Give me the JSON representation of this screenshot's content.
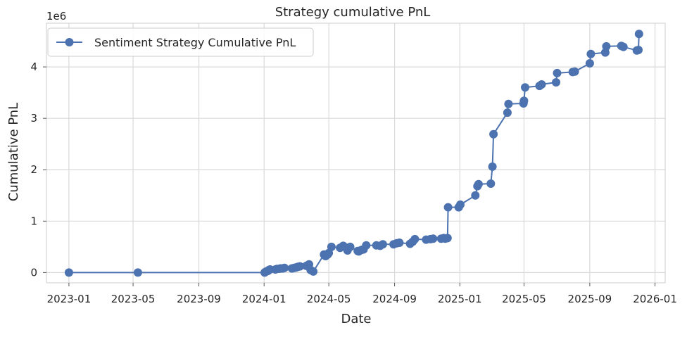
{
  "chart_data": {
    "type": "line",
    "title": "Strategy cumulative PnL",
    "xlabel": "Date",
    "ylabel": "Cumulative PnL",
    "y_offset_label": "1e6",
    "y_scale_factor": 1000000,
    "xlim": [
      "2022-11-20",
      "2026-01-20"
    ],
    "ylim": [
      -200000,
      4850000
    ],
    "x_ticks": [
      "2023-01",
      "2023-05",
      "2023-09",
      "2024-01",
      "2024-05",
      "2024-09",
      "2025-01",
      "2025-05",
      "2025-09",
      "2026-01"
    ],
    "y_ticks": [
      0,
      1000000,
      2000000,
      3000000,
      4000000
    ],
    "y_tick_labels": [
      "0",
      "1",
      "2",
      "3",
      "4"
    ],
    "grid": true,
    "legend_position": "top-left",
    "colors": {
      "series": "#4c72b0",
      "grid": "#d9d9d9",
      "axes_edge": "#cccccc"
    },
    "series": [
      {
        "name": "Sentiment Strategy Cumulative PnL",
        "marker": "circle",
        "x": [
          "2023-01-01",
          "2023-05-10",
          "2024-01-02",
          "2024-01-03",
          "2024-01-05",
          "2024-01-08",
          "2024-01-10",
          "2024-01-12",
          "2024-01-22",
          "2024-01-25",
          "2024-01-30",
          "2024-02-01",
          "2024-02-05",
          "2024-02-08",
          "2024-02-22",
          "2024-02-26",
          "2024-03-01",
          "2024-03-04",
          "2024-03-08",
          "2024-03-20",
          "2024-03-22",
          "2024-03-25",
          "2024-03-28",
          "2024-04-02",
          "2024-04-22",
          "2024-04-25",
          "2024-04-29",
          "2024-05-01",
          "2024-05-06",
          "2024-05-22",
          "2024-05-28",
          "2024-06-03",
          "2024-06-05",
          "2024-06-10",
          "2024-06-24",
          "2024-06-26",
          "2024-07-01",
          "2024-07-05",
          "2024-07-10",
          "2024-07-29",
          "2024-08-05",
          "2024-08-10",
          "2024-08-30",
          "2024-09-05",
          "2024-09-10",
          "2024-09-30",
          "2024-10-05",
          "2024-10-09",
          "2024-10-30",
          "2024-11-07",
          "2024-11-12",
          "2024-11-27",
          "2024-12-02",
          "2024-12-05",
          "2024-12-09",
          "2024-12-10",
          "2024-12-30",
          "2025-01-02",
          "2025-01-30",
          "2025-02-03",
          "2025-02-05",
          "2025-02-28",
          "2025-03-03",
          "2025-03-05",
          "2025-03-31",
          "2025-04-02",
          "2025-04-30",
          "2025-05-01",
          "2025-05-03",
          "2025-05-30",
          "2025-06-03",
          "2025-06-30",
          "2025-07-02",
          "2025-07-31",
          "2025-08-04",
          "2025-09-01",
          "2025-09-03",
          "2025-09-30",
          "2025-10-02",
          "2025-10-30",
          "2025-11-03",
          "2025-11-28",
          "2025-12-01",
          "2025-12-02"
        ],
        "y": [
          0,
          0,
          0,
          10000,
          20000,
          30000,
          50000,
          60000,
          60000,
          70000,
          75000,
          80000,
          80000,
          90000,
          80000,
          90000,
          100000,
          110000,
          120000,
          130000,
          140000,
          160000,
          50000,
          20000,
          350000,
          320000,
          350000,
          380000,
          500000,
          480000,
          520000,
          480000,
          430000,
          500000,
          420000,
          410000,
          440000,
          450000,
          530000,
          530000,
          520000,
          550000,
          550000,
          570000,
          580000,
          560000,
          600000,
          650000,
          640000,
          650000,
          660000,
          660000,
          670000,
          660000,
          670000,
          1270000,
          1270000,
          1320000,
          1500000,
          1680000,
          1720000,
          1730000,
          2060000,
          2690000,
          3110000,
          3280000,
          3290000,
          3340000,
          3600000,
          3630000,
          3660000,
          3700000,
          3880000,
          3900000,
          3910000,
          4070000,
          4250000,
          4280000,
          4400000,
          4410000,
          4390000,
          4320000,
          4330000,
          4640000
        ]
      }
    ]
  }
}
